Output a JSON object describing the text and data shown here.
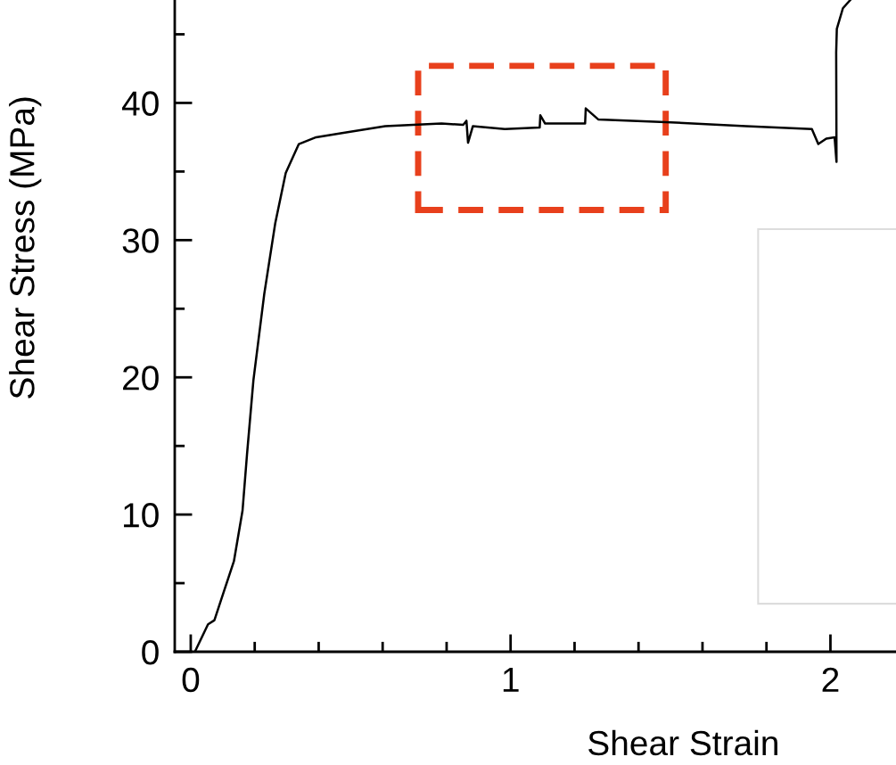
{
  "chart_data": {
    "type": "line",
    "xlabel": "Shear Strain",
    "ylabel": "Shear Stress (MPa)",
    "xlim": [
      -0.05,
      2.205
    ],
    "ylim": [
      0,
      47.5
    ],
    "xticks": [
      0,
      {
        "value": 0.2,
        "label": null
      },
      {
        "value": 0.4,
        "label": null
      },
      {
        "value": 0.6,
        "label": null
      },
      {
        "value": 0.8,
        "label": null
      },
      1,
      {
        "value": 1.2,
        "label": null
      },
      {
        "value": 1.4,
        "label": null
      },
      {
        "value": 1.6,
        "label": null
      },
      {
        "value": 1.8,
        "label": null
      },
      2
    ],
    "yticks": [
      0,
      {
        "value": 5,
        "label": null
      },
      10,
      {
        "value": 15,
        "label": null
      },
      20,
      {
        "value": 25,
        "label": null
      },
      30,
      {
        "value": 35,
        "label": null
      },
      40,
      {
        "value": 45,
        "label": null
      }
    ],
    "grid": false,
    "marker": "none",
    "line_style": "solid",
    "series": [
      {
        "color": "#000000",
        "x": [
          0.013,
          0.054,
          0.074,
          0.108,
          0.135,
          0.162,
          0.176,
          0.196,
          0.23,
          0.264,
          0.297,
          0.338,
          0.392,
          0.473,
          0.608,
          0.784,
          0.852,
          0.862,
          0.867,
          0.882,
          0.982,
          1.091,
          1.093,
          1.108,
          1.233,
          1.235,
          1.274,
          1.485,
          1.736,
          1.942,
          1.962,
          1.987,
          2.013,
          2.019,
          2.018,
          2.02,
          2.039,
          2.062
        ],
        "values": [
          0,
          2.0,
          2.3,
          4.7,
          6.6,
          10.3,
          14.4,
          19.8,
          26.1,
          31.2,
          34.9,
          37.0,
          37.5,
          37.8,
          38.3,
          38.5,
          38.4,
          38.7,
          37.1,
          38.3,
          38.1,
          38.2,
          39.1,
          38.5,
          38.5,
          39.6,
          38.8,
          38.6,
          38.3,
          38.1,
          37.0,
          37.4,
          37.5,
          35.7,
          43.7,
          45.4,
          46.9,
          47.5
        ]
      }
    ]
  }
}
